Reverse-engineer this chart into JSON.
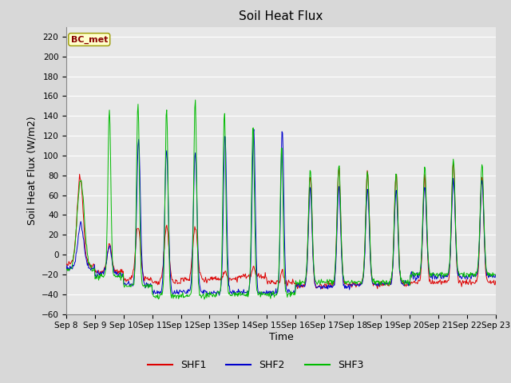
{
  "title": "Soil Heat Flux",
  "xlabel": "Time",
  "ylabel": "Soil Heat Flux (W/m2)",
  "ylim": [
    -60,
    230
  ],
  "yticks": [
    -60,
    -40,
    -20,
    0,
    20,
    40,
    60,
    80,
    100,
    120,
    140,
    160,
    180,
    200,
    220
  ],
  "background_color": "#d8d8d8",
  "plot_bg_color": "#e8e8e8",
  "grid_color": "#ffffff",
  "title_fontsize": 11,
  "label_fontsize": 9,
  "tick_fontsize": 7.5,
  "legend_labels": [
    "SHF1",
    "SHF2",
    "SHF3"
  ],
  "legend_colors": [
    "#dd0000",
    "#0000cc",
    "#00bb00"
  ],
  "annotation_text": "BC_met",
  "annotation_bg": "#ffffcc",
  "annotation_fg": "#880000",
  "xtick_labels": [
    "Sep 8",
    "Sep 9",
    "Sep 10",
    "Sep 11",
    "Sep 12",
    "Sep 13",
    "Sep 14",
    "Sep 15",
    "Sep 16",
    "Sep 17",
    "Sep 18",
    "Sep 19",
    "Sep 20",
    "Sep 21",
    "Sep 22",
    "Sep 23"
  ],
  "days": 15,
  "hours_per_day": 24,
  "dt_hours": 0.5
}
